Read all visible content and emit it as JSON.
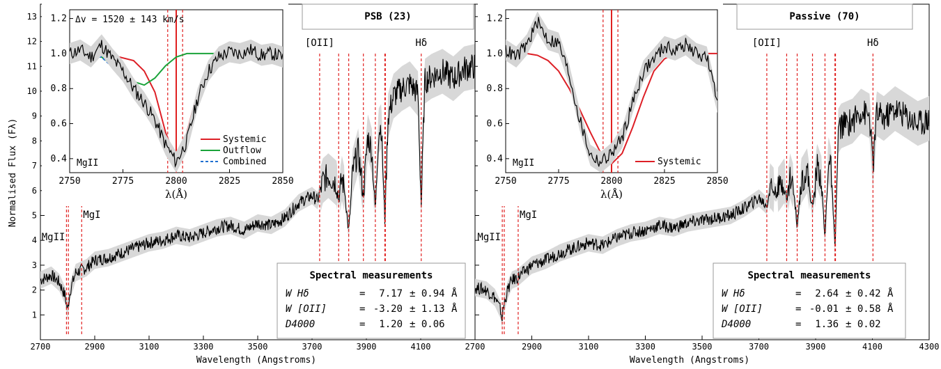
{
  "figure": {
    "ylabel": "Normalised Flux (Fλ)",
    "xlabel": "Wavelength (Angstroms)"
  },
  "chart_data": [
    {
      "type": "line",
      "panel": "left",
      "title": "PSB  (23)",
      "xlim": [
        2700,
        4300
      ],
      "ylim": [
        0,
        13.5
      ],
      "xticks": [
        2700,
        2900,
        3100,
        3300,
        3500,
        3700,
        3900,
        4100
      ],
      "yticks": [
        1,
        2,
        3,
        4,
        5,
        6,
        7,
        8,
        9,
        10,
        11,
        12,
        13
      ],
      "series": [
        {
          "color": "#000000",
          "x": [
            2700,
            2740,
            2770,
            2790,
            2800,
            2810,
            2830,
            2850,
            2870,
            2900,
            2950,
            3000,
            3050,
            3100,
            3150,
            3200,
            3250,
            3300,
            3350,
            3400,
            3450,
            3500,
            3550,
            3600,
            3650,
            3700,
            3720,
            3728,
            3740,
            3760,
            3790,
            3798,
            3810,
            3820,
            3835,
            3850,
            3870,
            3889,
            3905,
            3920,
            3933,
            3945,
            3955,
            3968,
            3980,
            4000,
            4030,
            4060,
            4090,
            4102,
            4115,
            4140,
            4180,
            4220,
            4260,
            4300
          ],
          "y": [
            2.4,
            2.6,
            2.3,
            1.8,
            1.2,
            2.0,
            2.7,
            2.8,
            2.9,
            3.2,
            3.3,
            3.5,
            3.7,
            3.9,
            4.0,
            4.2,
            4.1,
            4.3,
            4.5,
            4.6,
            4.4,
            4.7,
            4.6,
            4.9,
            5.5,
            5.8,
            5.6,
            5.9,
            6.4,
            6.6,
            6.3,
            5.6,
            6.5,
            6.0,
            4.3,
            6.8,
            7.6,
            5.8,
            8.2,
            7.6,
            5.2,
            8.4,
            8.6,
            4.8,
            9.0,
            9.8,
            10.1,
            10.3,
            9.9,
            5.4,
            10.4,
            10.6,
            10.8,
            10.5,
            10.9,
            11.0
          ]
        }
      ],
      "line_markers": [
        {
          "label": "MgII",
          "x": [
            2796,
            2803
          ]
        },
        {
          "label": "MgI",
          "x": [
            2852
          ]
        },
        {
          "label": "[OII]",
          "x": [
            3728
          ]
        },
        {
          "label": "",
          "x": [
            3798,
            3835,
            3889,
            3933,
            3968,
            3970
          ]
        },
        {
          "label": "Hδ",
          "x": [
            4102
          ]
        }
      ],
      "measurements": {
        "title": "Spectral measurements",
        "rows": [
          {
            "name": "W Hδ",
            "eq": "=",
            "value": "7.17",
            "err": "± 0.94",
            "unit": "Å"
          },
          {
            "name": "W [OII]",
            "eq": "=",
            "value": "-3.20",
            "err": "± 1.13",
            "unit": "Å"
          },
          {
            "name": "D4000",
            "eq": "=",
            "value": "1.20",
            "err": "± 0.06",
            "unit": ""
          }
        ]
      },
      "inset": {
        "label": "MgII",
        "annotation": "Δv = 1520 ± 143 km/s",
        "xlabel": "λ(Å)",
        "xlim": [
          2750,
          2850
        ],
        "ylim": [
          0.32,
          1.25
        ],
        "xticks": [
          2750,
          2775,
          2800,
          2825,
          2850
        ],
        "yticks": [
          0.4,
          0.6,
          0.8,
          1.0,
          1.2
        ],
        "vlines": [
          2796,
          2803
        ],
        "vlines_solid": [
          2800
        ],
        "legend": [
          "Systemic",
          "Outflow",
          "Combined"
        ],
        "series": [
          {
            "name": "Systemic",
            "color": "#dd1f26",
            "x": [
              2750,
              2770,
              2780,
              2785,
              2790,
              2795,
              2800,
              2805,
              2810,
              2815,
              2820,
              2830,
              2850
            ],
            "y": [
              1.0,
              0.99,
              0.96,
              0.9,
              0.78,
              0.55,
              0.39,
              0.55,
              0.78,
              0.92,
              0.98,
              1.0,
              1.0
            ]
          },
          {
            "name": "Outflow",
            "color": "#1aa33a",
            "x": [
              2750,
              2765,
              2775,
              2780,
              2785,
              2790,
              2795,
              2800,
              2805,
              2815,
              2850
            ],
            "y": [
              1.0,
              0.98,
              0.89,
              0.84,
              0.82,
              0.86,
              0.93,
              0.98,
              1.0,
              1.0,
              1.0
            ]
          },
          {
            "name": "Combined",
            "color": "#1f6fd0",
            "x": [
              2750,
              2765,
              2775,
              2780,
              2785,
              2790,
              2795,
              2800,
              2805,
              2810,
              2815,
              2820,
              2830,
              2850
            ],
            "y": [
              1.0,
              0.98,
              0.87,
              0.8,
              0.72,
              0.6,
              0.45,
              0.38,
              0.52,
              0.76,
              0.91,
              0.98,
              1.0,
              1.0
            ]
          },
          {
            "name": "",
            "color": "#000000",
            "x": [
              2750,
              2755,
              2760,
              2765,
              2770,
              2775,
              2780,
              2785,
              2790,
              2795,
              2800,
              2805,
              2810,
              2815,
              2820,
              2825,
              2830,
              2835,
              2840,
              2845,
              2850
            ],
            "y": [
              1.0,
              1.02,
              0.98,
              1.05,
              0.97,
              0.9,
              0.8,
              0.72,
              0.62,
              0.48,
              0.38,
              0.5,
              0.74,
              0.9,
              0.98,
              1.01,
              1.0,
              1.02,
              0.99,
              1.0,
              0.98
            ]
          }
        ]
      }
    },
    {
      "type": "line",
      "panel": "right",
      "title": "Passive  (70)",
      "xlim": [
        2700,
        4300
      ],
      "ylim": [
        0,
        13.5
      ],
      "xticks": [
        2700,
        2900,
        3100,
        3300,
        3500,
        3700,
        3900,
        4100,
        4300
      ],
      "series": [
        {
          "color": "#000000",
          "x": [
            2700,
            2740,
            2770,
            2790,
            2795,
            2800,
            2815,
            2830,
            2850,
            2870,
            2900,
            2950,
            3000,
            3050,
            3100,
            3150,
            3200,
            3250,
            3300,
            3350,
            3400,
            3450,
            3500,
            3550,
            3600,
            3650,
            3700,
            3728,
            3740,
            3760,
            3790,
            3798,
            3810,
            3820,
            3835,
            3850,
            3870,
            3889,
            3905,
            3920,
            3933,
            3945,
            3955,
            3968,
            3980,
            3990,
            4030,
            4060,
            4090,
            4102,
            4115,
            4140,
            4180,
            4220,
            4260,
            4300
          ],
          "y": [
            2.1,
            2.0,
            1.7,
            1.2,
            0.8,
            1.3,
            2.0,
            2.4,
            2.5,
            2.7,
            3.0,
            3.2,
            3.5,
            3.7,
            3.9,
            3.8,
            4.1,
            4.3,
            4.4,
            4.6,
            4.5,
            4.7,
            4.8,
            4.9,
            5.0,
            5.3,
            5.7,
            5.4,
            6.2,
            5.9,
            6.4,
            5.5,
            6.6,
            6.2,
            4.6,
            6.4,
            6.8,
            5.2,
            7.0,
            6.5,
            4.0,
            7.3,
            6.8,
            3.6,
            8.4,
            8.6,
            8.8,
            9.2,
            9.0,
            6.9,
            9.1,
            8.9,
            9.3,
            9.0,
            8.7,
            8.9
          ]
        }
      ],
      "line_markers": [
        {
          "label": "MgII",
          "x": [
            2796,
            2803
          ]
        },
        {
          "label": "MgI",
          "x": [
            2852
          ]
        },
        {
          "label": "[OII]",
          "x": [
            3728
          ]
        },
        {
          "label": "",
          "x": [
            3798,
            3835,
            3889,
            3933,
            3968,
            3970
          ]
        },
        {
          "label": "Hδ",
          "x": [
            4102
          ]
        }
      ],
      "measurements": {
        "title": "Spectral measurements",
        "rows": [
          {
            "name": "W Hδ",
            "eq": "=",
            "value": "2.64",
            "err": "± 0.42",
            "unit": "Å"
          },
          {
            "name": "W [OII]",
            "eq": "=",
            "value": "-0.01",
            "err": "± 0.58",
            "unit": "Å"
          },
          {
            "name": "D4000",
            "eq": "=",
            "value": "1.36",
            "err": "± 0.02",
            "unit": ""
          }
        ]
      },
      "inset": {
        "label": "MgII",
        "xlabel": "λ(Å)",
        "xlim": [
          2750,
          2850
        ],
        "ylim": [
          0.32,
          1.25
        ],
        "xticks": [
          2750,
          2775,
          2800,
          2825,
          2850
        ],
        "yticks": [
          0.4,
          0.6,
          0.8,
          1.0,
          1.2
        ],
        "vlines": [
          2796,
          2803
        ],
        "vlines_solid": [
          2800
        ],
        "legend": [
          "Systemic"
        ],
        "series": [
          {
            "name": "Systemic",
            "color": "#dd1f26",
            "x": [
              2750,
              2760,
              2765,
              2770,
              2775,
              2780,
              2785,
              2790,
              2795,
              2800,
              2805,
              2810,
              2815,
              2820,
              2825,
              2830,
              2840,
              2850
            ],
            "y": [
              1.0,
              1.0,
              0.99,
              0.96,
              0.9,
              0.8,
              0.68,
              0.55,
              0.43,
              0.37,
              0.43,
              0.58,
              0.75,
              0.9,
              0.97,
              1.0,
              1.0,
              1.0
            ]
          },
          {
            "name": "",
            "color": "#000000",
            "x": [
              2750,
              2755,
              2760,
              2765,
              2770,
              2775,
              2780,
              2785,
              2790,
              2795,
              2800,
              2805,
              2810,
              2815,
              2820,
              2825,
              2830,
              2835,
              2840,
              2845,
              2850
            ],
            "y": [
              1.02,
              0.98,
              1.05,
              1.18,
              1.08,
              1.06,
              0.88,
              0.62,
              0.42,
              0.38,
              0.43,
              0.52,
              0.72,
              0.9,
              0.97,
              1.04,
              1.02,
              1.05,
              1.0,
              0.98,
              0.72
            ]
          }
        ]
      }
    }
  ]
}
